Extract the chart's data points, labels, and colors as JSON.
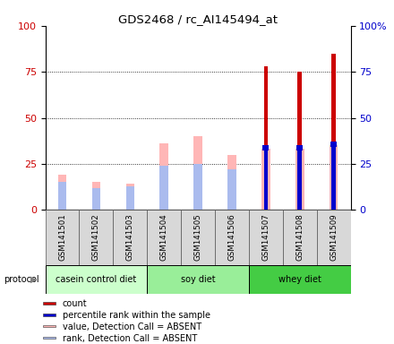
{
  "title": "GDS2468 / rc_AI145494_at",
  "samples": [
    "GSM141501",
    "GSM141502",
    "GSM141503",
    "GSM141504",
    "GSM141505",
    "GSM141506",
    "GSM141507",
    "GSM141508",
    "GSM141509"
  ],
  "count_values": [
    0,
    0,
    0,
    0,
    0,
    0,
    78,
    75,
    85
  ],
  "percentile_values": [
    0,
    0,
    0,
    0,
    0,
    0,
    33,
    33,
    35
  ],
  "value_absent": [
    19,
    15,
    14,
    36,
    40,
    30,
    33,
    33,
    35
  ],
  "rank_absent": [
    15,
    12,
    13,
    24,
    25,
    22,
    0,
    0,
    0
  ],
  "left_yticks": [
    0,
    25,
    50,
    75,
    100
  ],
  "right_yticks": [
    0,
    25,
    50,
    75,
    100
  ],
  "left_ylabel_color": "#cc0000",
  "right_ylabel_color": "#0000cc",
  "grid_lines": [
    25,
    50,
    75
  ],
  "count_color": "#cc0000",
  "percentile_color": "#0000cc",
  "value_absent_color": "#ffb6b6",
  "rank_absent_color": "#aabbee",
  "protocol_ranges": {
    "casein control diet": [
      0,
      2
    ],
    "soy diet": [
      3,
      5
    ],
    "whey diet": [
      6,
      8
    ]
  },
  "protocol_colors": {
    "casein control diet": "#ccffcc",
    "soy diet": "#99ee99",
    "whey diet": "#44cc44"
  },
  "legend_items": [
    {
      "label": "count",
      "color": "#cc0000"
    },
    {
      "label": "percentile rank within the sample",
      "color": "#0000cc"
    },
    {
      "label": "value, Detection Call = ABSENT",
      "color": "#ffb6b6"
    },
    {
      "label": "rank, Detection Call = ABSENT",
      "color": "#aabbee"
    }
  ],
  "bg_color": "#d8d8d8",
  "plot_bg_color": "#ffffff",
  "thin_bar_width": 0.12,
  "wide_bar_width": 0.25
}
